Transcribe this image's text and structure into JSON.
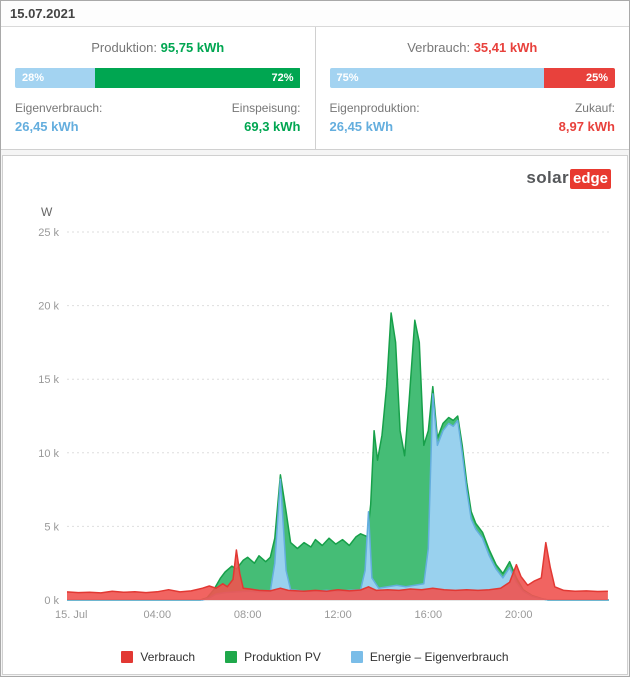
{
  "page": {
    "date": "15.07.2021"
  },
  "production_panel": {
    "title_label": "Produktion:",
    "title_value": "95,75 kWh",
    "bar": {
      "left_pct": 28,
      "left_label": "28%",
      "right_pct": 72,
      "right_label": "72%"
    },
    "left_stat_label": "Eigenverbrauch:",
    "left_stat_value": "26,45 kWh",
    "right_stat_label": "Einspeisung:",
    "right_stat_value": "69,3 kWh"
  },
  "consumption_panel": {
    "title_label": "Verbrauch:",
    "title_value": "35,41 kWh",
    "bar": {
      "left_pct": 75,
      "left_label": "75%",
      "right_pct": 25,
      "right_label": "25%"
    },
    "left_stat_label": "Eigenproduktion:",
    "left_stat_value": "26,45 kWh",
    "right_stat_label": "Zukauf:",
    "right_stat_value": "8,97 kWh"
  },
  "logo": {
    "part1": "solar",
    "part2": "edge"
  },
  "colors": {
    "green": "#00a651",
    "red": "#e8413c",
    "light_blue": "#a3d3f1",
    "blue_text": "#64aede"
  },
  "chart_data": {
    "type": "area",
    "title": "",
    "ylabel": "W",
    "xlabel": "",
    "ylim": [
      0,
      25000
    ],
    "x_hours_range": [
      0,
      24
    ],
    "grid": "horizontal-dotted",
    "legend_position": "bottom-center",
    "yticks": [
      0,
      5000,
      10000,
      15000,
      20000,
      25000
    ],
    "ytick_labels": [
      "0 k",
      "5 k",
      "10 k",
      "15 k",
      "20 k",
      "25 k"
    ],
    "xticks": [
      {
        "hour": 0,
        "label": "15. Jul"
      },
      {
        "hour": 4,
        "label": "04:00"
      },
      {
        "hour": 8,
        "label": "08:00"
      },
      {
        "hour": 12,
        "label": "12:00"
      },
      {
        "hour": 16,
        "label": "16:00"
      },
      {
        "hour": 20,
        "label": "20:00"
      }
    ],
    "series": [
      {
        "name": "Produktion PV",
        "stroke": "#17a04a",
        "fill": "#45bd76",
        "fill_opacity": 1,
        "points": [
          [
            0,
            0
          ],
          [
            5.9,
            0
          ],
          [
            6.2,
            150
          ],
          [
            6.5,
            700
          ],
          [
            6.8,
            1500
          ],
          [
            7,
            1900
          ],
          [
            7.3,
            2300
          ],
          [
            7.5,
            2100
          ],
          [
            7.8,
            2700
          ],
          [
            8,
            2900
          ],
          [
            8.3,
            2500
          ],
          [
            8.5,
            3000
          ],
          [
            8.8,
            2600
          ],
          [
            9,
            2900
          ],
          [
            9.2,
            4200
          ],
          [
            9.45,
            8500
          ],
          [
            9.7,
            6000
          ],
          [
            9.9,
            3900
          ],
          [
            10.2,
            3500
          ],
          [
            10.5,
            3900
          ],
          [
            10.8,
            3600
          ],
          [
            11,
            4100
          ],
          [
            11.3,
            3700
          ],
          [
            11.6,
            4200
          ],
          [
            11.9,
            3800
          ],
          [
            12.2,
            4100
          ],
          [
            12.5,
            3700
          ],
          [
            12.8,
            4300
          ],
          [
            13,
            4500
          ],
          [
            13.3,
            4300
          ],
          [
            13.45,
            6500
          ],
          [
            13.6,
            11500
          ],
          [
            13.75,
            9500
          ],
          [
            13.95,
            11200
          ],
          [
            14.15,
            14500
          ],
          [
            14.35,
            19500
          ],
          [
            14.55,
            17500
          ],
          [
            14.75,
            11500
          ],
          [
            14.95,
            9800
          ],
          [
            15.15,
            13500
          ],
          [
            15.4,
            19000
          ],
          [
            15.6,
            17500
          ],
          [
            15.8,
            10500
          ],
          [
            16,
            11500
          ],
          [
            16.2,
            14500
          ],
          [
            16.4,
            11000
          ],
          [
            16.65,
            12000
          ],
          [
            16.9,
            12400
          ],
          [
            17.1,
            12200
          ],
          [
            17.3,
            12500
          ],
          [
            17.5,
            10500
          ],
          [
            17.7,
            8000
          ],
          [
            17.9,
            6000
          ],
          [
            18.1,
            5200
          ],
          [
            18.4,
            4600
          ],
          [
            18.7,
            3400
          ],
          [
            19,
            2400
          ],
          [
            19.3,
            1800
          ],
          [
            19.6,
            2600
          ],
          [
            19.9,
            1500
          ],
          [
            20.2,
            700
          ],
          [
            20.6,
            300
          ],
          [
            21,
            100
          ],
          [
            21.3,
            0
          ],
          [
            24,
            0
          ]
        ]
      },
      {
        "name": "Energie – Eigenverbrauch",
        "stroke": "#64aede",
        "fill": "#9ed2f4",
        "fill_opacity": 0.95,
        "points": [
          [
            0,
            0
          ],
          [
            6,
            0
          ],
          [
            6.3,
            150
          ],
          [
            6.6,
            400
          ],
          [
            7,
            500
          ],
          [
            7.5,
            550
          ],
          [
            8,
            600
          ],
          [
            8.5,
            550
          ],
          [
            9,
            600
          ],
          [
            9.2,
            2500
          ],
          [
            9.45,
            8200
          ],
          [
            9.7,
            2000
          ],
          [
            9.9,
            700
          ],
          [
            10.5,
            600
          ],
          [
            11,
            600
          ],
          [
            11.5,
            650
          ],
          [
            12,
            600
          ],
          [
            12.5,
            650
          ],
          [
            13,
            700
          ],
          [
            13.2,
            2000
          ],
          [
            13.35,
            6000
          ],
          [
            13.5,
            1500
          ],
          [
            13.8,
            800
          ],
          [
            14.2,
            900
          ],
          [
            14.6,
            1000
          ],
          [
            15,
            900
          ],
          [
            15.4,
            1000
          ],
          [
            15.8,
            1100
          ],
          [
            16,
            3500
          ],
          [
            16.2,
            14000
          ],
          [
            16.4,
            10500
          ],
          [
            16.65,
            11500
          ],
          [
            16.9,
            12000
          ],
          [
            17.1,
            11800
          ],
          [
            17.3,
            12200
          ],
          [
            17.5,
            10000
          ],
          [
            17.7,
            7500
          ],
          [
            17.9,
            5500
          ],
          [
            18.1,
            4800
          ],
          [
            18.4,
            4200
          ],
          [
            18.7,
            3000
          ],
          [
            19,
            2100
          ],
          [
            19.3,
            1500
          ],
          [
            19.6,
            2200
          ],
          [
            19.9,
            1200
          ],
          [
            20.2,
            600
          ],
          [
            20.6,
            250
          ],
          [
            21,
            80
          ],
          [
            21.3,
            0
          ],
          [
            24,
            0
          ]
        ]
      },
      {
        "name": "Verbrauch",
        "stroke": "#e23833",
        "fill": "#ef5350",
        "fill_opacity": 0.9,
        "points": [
          [
            0,
            550
          ],
          [
            0.5,
            500
          ],
          [
            1,
            520
          ],
          [
            1.5,
            480
          ],
          [
            2,
            600
          ],
          [
            2.5,
            520
          ],
          [
            3,
            560
          ],
          [
            3.5,
            500
          ],
          [
            4,
            560
          ],
          [
            4.5,
            700
          ],
          [
            5,
            550
          ],
          [
            5.5,
            620
          ],
          [
            6,
            800
          ],
          [
            6.3,
            950
          ],
          [
            6.6,
            800
          ],
          [
            6.9,
            1100
          ],
          [
            7.1,
            900
          ],
          [
            7.35,
            1400
          ],
          [
            7.5,
            3400
          ],
          [
            7.65,
            1800
          ],
          [
            7.8,
            800
          ],
          [
            8.1,
            750
          ],
          [
            8.5,
            650
          ],
          [
            9,
            620
          ],
          [
            9.45,
            800
          ],
          [
            9.8,
            650
          ],
          [
            10.5,
            600
          ],
          [
            11,
            650
          ],
          [
            11.5,
            600
          ],
          [
            12,
            700
          ],
          [
            12.5,
            620
          ],
          [
            13,
            680
          ],
          [
            13.35,
            900
          ],
          [
            13.7,
            650
          ],
          [
            14.2,
            700
          ],
          [
            14.7,
            650
          ],
          [
            15.2,
            750
          ],
          [
            15.7,
            700
          ],
          [
            16.2,
            800
          ],
          [
            16.7,
            700
          ],
          [
            17.2,
            650
          ],
          [
            17.7,
            700
          ],
          [
            18.2,
            650
          ],
          [
            18.7,
            700
          ],
          [
            19.2,
            800
          ],
          [
            19.6,
            1200
          ],
          [
            19.9,
            2400
          ],
          [
            20.1,
            1600
          ],
          [
            20.4,
            1000
          ],
          [
            20.7,
            1300
          ],
          [
            21,
            1500
          ],
          [
            21.2,
            3900
          ],
          [
            21.4,
            2200
          ],
          [
            21.6,
            900
          ],
          [
            22,
            650
          ],
          [
            22.5,
            600
          ],
          [
            23,
            620
          ],
          [
            23.5,
            580
          ],
          [
            23.95,
            600
          ]
        ]
      }
    ],
    "legend": [
      {
        "key": "verbrauch",
        "label": "Verbrauch",
        "color": "#e23833"
      },
      {
        "key": "produktion-pv",
        "label": "Produktion PV",
        "color": "#1fa84b"
      },
      {
        "key": "energie-eigenverbrauch",
        "label": "Energie – Eigenverbrauch",
        "color": "#7abde8"
      }
    ]
  }
}
